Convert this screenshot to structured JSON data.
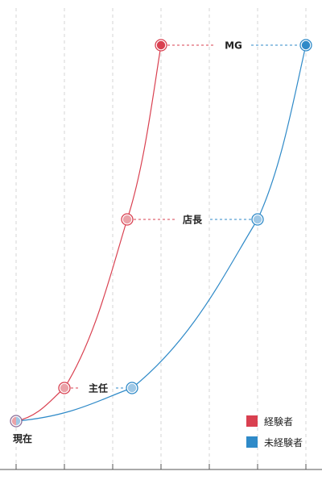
{
  "chart_data": {
    "type": "line",
    "title": "",
    "xlabel": "",
    "ylabel": "",
    "x": [
      0,
      1,
      2,
      3,
      4,
      5,
      6
    ],
    "xlim": [
      0,
      6
    ],
    "grid": true,
    "levels": [
      "現在",
      "主任",
      "店長",
      "MG"
    ],
    "start_label": "現在",
    "series": [
      {
        "name": "経験者",
        "color": "#d94050",
        "points": [
          {
            "x": 0,
            "level": "現在"
          },
          {
            "x": 1,
            "level": "主任"
          },
          {
            "x": 2.3,
            "level": "店長"
          },
          {
            "x": 3,
            "level": "MG"
          }
        ]
      },
      {
        "name": "未経験者",
        "color": "#2f8ac8",
        "points": [
          {
            "x": 0,
            "level": "現在"
          },
          {
            "x": 2.4,
            "level": "主任"
          },
          {
            "x": 5,
            "level": "店長"
          },
          {
            "x": 6,
            "level": "MG"
          }
        ]
      }
    ],
    "annotations": [
      "主任",
      "店長",
      "MG"
    ],
    "legend": "bottom-right"
  }
}
